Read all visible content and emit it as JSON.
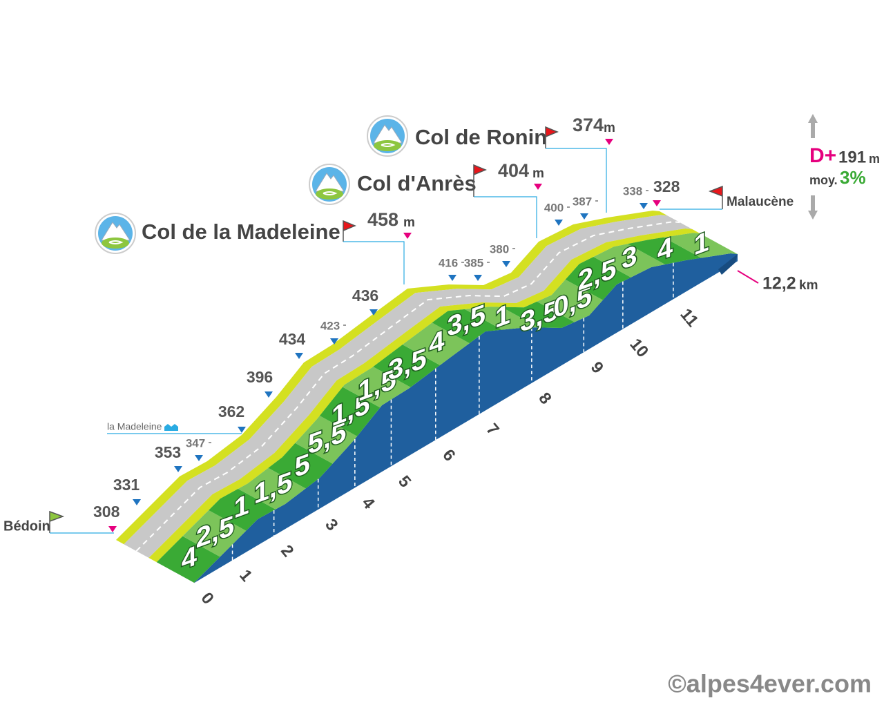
{
  "start": {
    "name": "Bédoin",
    "altitude": 308
  },
  "finish": {
    "name": "Malaucène",
    "altitude": 328
  },
  "passes": [
    {
      "name": "Col de la Madeleine",
      "altitude": 458,
      "unit": "m"
    },
    {
      "name": "Col d'Anrès",
      "altitude": 404,
      "unit": "m"
    },
    {
      "name": "Col de Ronin",
      "altitude": 374,
      "unit": "m"
    }
  ],
  "village": {
    "name": "la Madeleine"
  },
  "altitudes": [
    331,
    353,
    347,
    362,
    396,
    434,
    423,
    436,
    416,
    385,
    380,
    400,
    387,
    338
  ],
  "gradients": [
    "4",
    "2,5",
    "1",
    "1,5",
    "5",
    "5,5",
    "1,5",
    "1,5",
    "3,5",
    "4",
    "3,5",
    "1",
    "3,5",
    "0,5",
    "2,5",
    "3",
    "4",
    "1"
  ],
  "km_marks": [
    0,
    1,
    2,
    3,
    4,
    5,
    6,
    7,
    8,
    9,
    10,
    11
  ],
  "distance": {
    "value": "12,2",
    "unit": "km"
  },
  "summary": {
    "gain_label": "D+",
    "gain": 191,
    "gain_unit": "m",
    "avg_label": "moy.",
    "avg": "3%"
  },
  "copyright": "©alpes4ever.com"
}
